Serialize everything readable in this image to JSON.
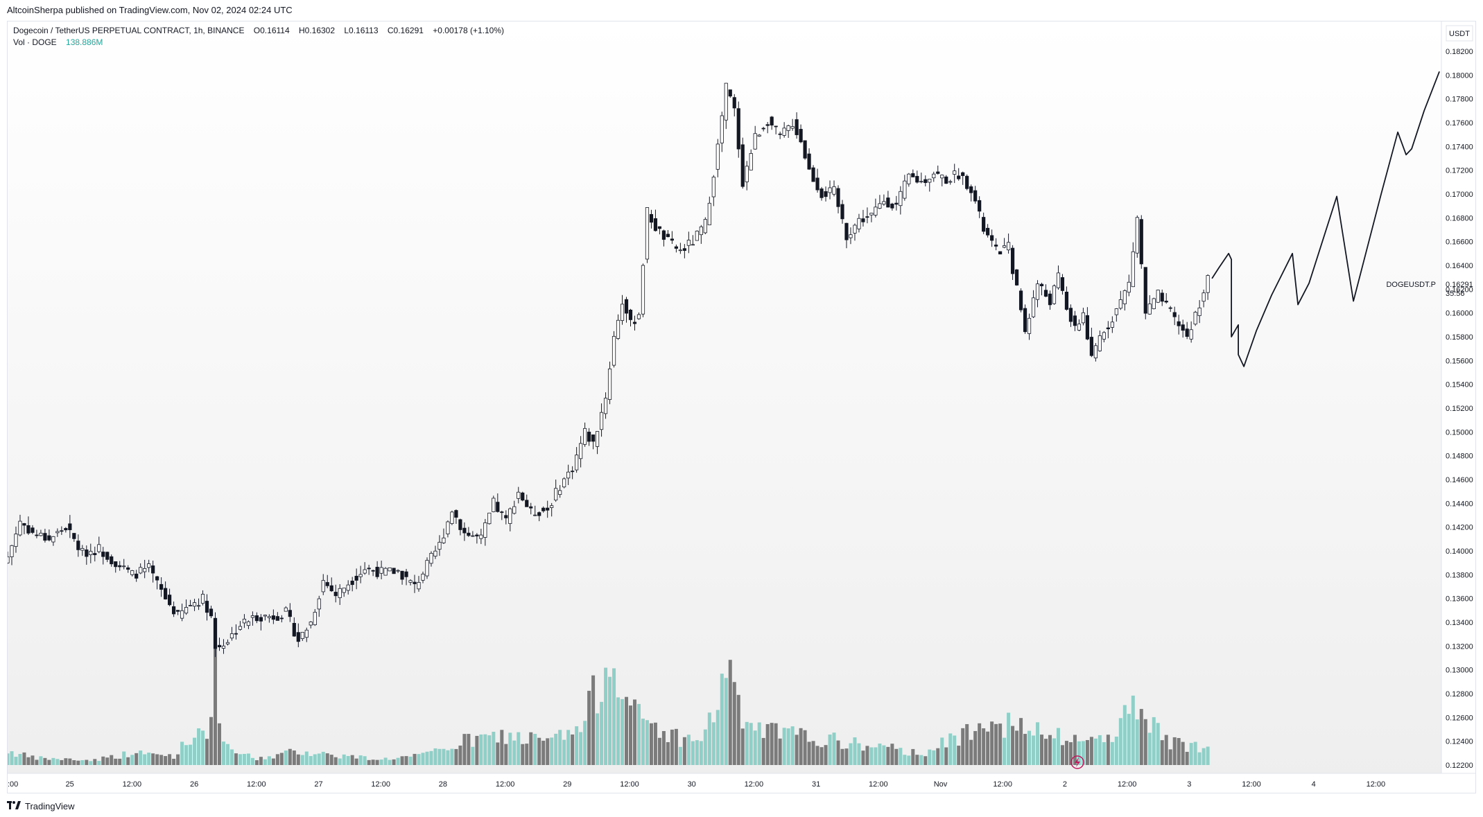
{
  "header": {
    "publish_line": "AltcoinSherpa published on TradingView.com, Nov 02, 2024 02:24 UTC"
  },
  "legend": {
    "symbol": "Dogecoin / TetherUS PERPETUAL CONTRACT, 1h, BINANCE",
    "open": "O0.16114",
    "high": "H0.16302",
    "low": "L0.16113",
    "close": "C0.16291",
    "change": "+0.00178 (+1.10%)",
    "volume_label": "Vol · DOGE",
    "volume_value": "138.886M"
  },
  "price_axis": {
    "currency": "USDT",
    "ticks": [
      "0.18200",
      "0.18000",
      "0.17800",
      "0.17600",
      "0.17400",
      "0.17200",
      "0.17000",
      "0.16800",
      "0.16600",
      "0.16400",
      "0.16200",
      "0.16000",
      "0.15800",
      "0.15600",
      "0.15400",
      "0.15200",
      "0.15000",
      "0.14800",
      "0.14600",
      "0.14400",
      "0.14200",
      "0.14000",
      "0.13800",
      "0.13600",
      "0.13400",
      "0.13200",
      "0.13000",
      "0.12800",
      "0.12600",
      "0.12400",
      "0.12200"
    ],
    "last_price": "0.16291",
    "countdown": "35:56",
    "symbol_tag": "DOGEUSDT.P"
  },
  "time_axis": {
    "ticks": [
      ":00",
      "25",
      "12:00",
      "26",
      "12:00",
      "27",
      "12:00",
      "28",
      "12:00",
      "29",
      "12:00",
      "30",
      "12:00",
      "31",
      "12:00",
      "Nov",
      "12:00",
      "2",
      "12:00",
      "3",
      "12:00",
      "4",
      "12:00"
    ]
  },
  "footer": {
    "brand": "TradingView",
    "brand_icon": "tradingview-logo-icon"
  },
  "colors": {
    "up_volume": "#8fcfc7",
    "down_volume": "#7b7b7b",
    "candle_up_fill": "#ffffff",
    "candle_down_fill": "#131722",
    "candle_border": "#131722",
    "accent_teal": "#26a69a",
    "lightning": "#c2185b"
  },
  "chart_data": {
    "type": "candlestick",
    "symbol": "DOGEUSDT.P",
    "interval": "1h",
    "ylim": [
      0.12,
      0.183
    ],
    "price_path_keypoints": [
      [
        0,
        0.1395
      ],
      [
        3,
        0.1425
      ],
      [
        6,
        0.1415
      ],
      [
        10,
        0.141
      ],
      [
        14,
        0.142
      ],
      [
        18,
        0.1398
      ],
      [
        22,
        0.1402
      ],
      [
        26,
        0.139
      ],
      [
        30,
        0.138
      ],
      [
        34,
        0.1385
      ],
      [
        38,
        0.136
      ],
      [
        41,
        0.1345
      ],
      [
        44,
        0.1355
      ],
      [
        47,
        0.136
      ],
      [
        49,
        0.1345
      ],
      [
        50,
        0.1318
      ],
      [
        53,
        0.1325
      ],
      [
        56,
        0.1338
      ],
      [
        60,
        0.1345
      ],
      [
        64,
        0.1345
      ],
      [
        67,
        0.1348
      ],
      [
        70,
        0.1325
      ],
      [
        73,
        0.134
      ],
      [
        76,
        0.1375
      ],
      [
        79,
        0.1363
      ],
      [
        82,
        0.1373
      ],
      [
        86,
        0.1385
      ],
      [
        90,
        0.1382
      ],
      [
        94,
        0.1383
      ],
      [
        98,
        0.137
      ],
      [
        101,
        0.1388
      ],
      [
        104,
        0.1405
      ],
      [
        107,
        0.1435
      ],
      [
        110,
        0.1415
      ],
      [
        114,
        0.141
      ],
      [
        117,
        0.144
      ],
      [
        120,
        0.1425
      ],
      [
        123,
        0.145
      ],
      [
        126,
        0.1432
      ],
      [
        130,
        0.1435
      ],
      [
        133,
        0.1455
      ],
      [
        136,
        0.147
      ],
      [
        139,
        0.15
      ],
      [
        141,
        0.149
      ],
      [
        144,
        0.153
      ],
      [
        146,
        0.158
      ],
      [
        148,
        0.161
      ],
      [
        150,
        0.159
      ],
      [
        152,
        0.16
      ],
      [
        154,
        0.1685
      ],
      [
        156,
        0.1672
      ],
      [
        159,
        0.166
      ],
      [
        162,
        0.1652
      ],
      [
        165,
        0.166
      ],
      [
        168,
        0.1675
      ],
      [
        171,
        0.174
      ],
      [
        173,
        0.179
      ],
      [
        175,
        0.177
      ],
      [
        177,
        0.171
      ],
      [
        180,
        0.1748
      ],
      [
        183,
        0.1762
      ],
      [
        186,
        0.1748
      ],
      [
        189,
        0.176
      ],
      [
        191,
        0.1745
      ],
      [
        193,
        0.172
      ],
      [
        196,
        0.17
      ],
      [
        199,
        0.1702
      ],
      [
        202,
        0.1665
      ],
      [
        205,
        0.1678
      ],
      [
        208,
        0.1682
      ],
      [
        211,
        0.1695
      ],
      [
        214,
        0.169
      ],
      [
        217,
        0.1715
      ],
      [
        220,
        0.171
      ],
      [
        223,
        0.1718
      ],
      [
        226,
        0.1712
      ],
      [
        229,
        0.1717
      ],
      [
        232,
        0.1705
      ],
      [
        235,
        0.167
      ],
      [
        238,
        0.1652
      ],
      [
        241,
        0.1655
      ],
      [
        243,
        0.162
      ],
      [
        245,
        0.1585
      ],
      [
        248,
        0.1625
      ],
      [
        251,
        0.161
      ],
      [
        253,
        0.163
      ],
      [
        255,
        0.1605
      ],
      [
        257,
        0.1585
      ],
      [
        259,
        0.16
      ],
      [
        261,
        0.156
      ],
      [
        263,
        0.158
      ],
      [
        265,
        0.159
      ],
      [
        268,
        0.161
      ],
      [
        270,
        0.1625
      ],
      [
        272,
        0.168
      ],
      [
        274,
        0.16
      ],
      [
        277,
        0.1615
      ],
      [
        280,
        0.16
      ],
      [
        282,
        0.159
      ],
      [
        284,
        0.158
      ],
      [
        286,
        0.1598
      ],
      [
        289,
        0.1629
      ]
    ],
    "volume_keypoints": [
      [
        0,
        0.12
      ],
      [
        6,
        0.06
      ],
      [
        20,
        0.04
      ],
      [
        30,
        0.1
      ],
      [
        40,
        0.08
      ],
      [
        46,
        0.3
      ],
      [
        49,
        0.35
      ],
      [
        50,
        0.85
      ],
      [
        52,
        0.15
      ],
      [
        60,
        0.05
      ],
      [
        70,
        0.12
      ],
      [
        80,
        0.08
      ],
      [
        90,
        0.05
      ],
      [
        100,
        0.08
      ],
      [
        110,
        0.2
      ],
      [
        120,
        0.25
      ],
      [
        130,
        0.2
      ],
      [
        138,
        0.3
      ],
      [
        143,
        0.75
      ],
      [
        146,
        1.0
      ],
      [
        150,
        0.45
      ],
      [
        155,
        0.35
      ],
      [
        160,
        0.25
      ],
      [
        166,
        0.2
      ],
      [
        170,
        0.4
      ],
      [
        173,
        0.9
      ],
      [
        176,
        0.45
      ],
      [
        180,
        0.3
      ],
      [
        190,
        0.25
      ],
      [
        200,
        0.2
      ],
      [
        210,
        0.15
      ],
      [
        220,
        0.1
      ],
      [
        230,
        0.25
      ],
      [
        235,
        0.45
      ],
      [
        240,
        0.35
      ],
      [
        245,
        0.3
      ],
      [
        250,
        0.25
      ],
      [
        260,
        0.2
      ],
      [
        265,
        0.25
      ],
      [
        270,
        0.45
      ],
      [
        273,
        0.55
      ],
      [
        278,
        0.2
      ],
      [
        289,
        0.15
      ]
    ],
    "projection_path": [
      [
        0.1629,
        0
      ],
      [
        0.1638,
        5
      ],
      [
        0.165,
        12
      ],
      [
        0.1645,
        14
      ],
      [
        0.158,
        14
      ],
      [
        0.159,
        19
      ],
      [
        0.1565,
        19
      ],
      [
        0.1555,
        23
      ],
      [
        0.1585,
        32
      ],
      [
        0.1615,
        43
      ],
      [
        0.165,
        58
      ],
      [
        0.1607,
        62
      ],
      [
        0.1625,
        70
      ],
      [
        0.1698,
        90
      ],
      [
        0.161,
        102
      ],
      [
        0.17,
        122
      ],
      [
        0.1752,
        134
      ],
      [
        0.1733,
        140
      ],
      [
        0.1738,
        144
      ],
      [
        0.177,
        153
      ],
      [
        0.1803,
        164
      ]
    ]
  }
}
